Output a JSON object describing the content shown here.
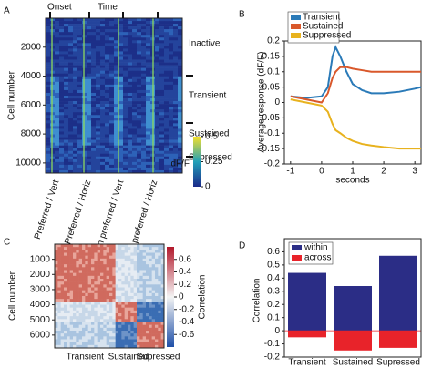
{
  "chart_data": [
    {
      "type": "heatmap",
      "panel": "A",
      "title": "Time",
      "annotation": "Onset",
      "ylabel": "Cell number",
      "ylim": [
        0,
        10700
      ],
      "yticks": [
        2000,
        4000,
        6000,
        8000,
        10000
      ],
      "groups": [
        {
          "name": "Inactive",
          "color": "#111111"
        },
        {
          "name": "Transient",
          "color": "#2a7ab8"
        },
        {
          "name": "Sustained",
          "color": "#d9582b"
        },
        {
          "name": "Supressed",
          "color": "#e8b21e"
        }
      ],
      "conditions": [
        {
          "name": "Preferred / Vert",
          "color": "#5aa845"
        },
        {
          "name": "Preferred / Horiz",
          "color": "#5aa845"
        },
        {
          "name": "Non preferred / Vert",
          "color": "#c0392b"
        },
        {
          "name": "Non preferred / Horiz",
          "color": "#c0392b"
        }
      ],
      "colorbar": {
        "label": "dF/F",
        "clim": [
          0,
          0.5
        ],
        "ticks": [
          0,
          0.25,
          0.5
        ]
      }
    },
    {
      "type": "line",
      "panel": "B",
      "xlabel": "seconds",
      "ylabel": "Average response (dF/F)",
      "x": [
        -1,
        -0.5,
        0,
        0.2,
        0.35,
        0.45,
        0.6,
        0.8,
        1,
        1.3,
        1.6,
        2,
        2.5,
        3,
        3.2
      ],
      "series": [
        {
          "name": "Transient",
          "color": "#2a7ab8",
          "values": [
            0.02,
            0.015,
            0.02,
            0.05,
            0.15,
            0.18,
            0.15,
            0.1,
            0.06,
            0.04,
            0.03,
            0.03,
            0.035,
            0.045,
            0.05
          ]
        },
        {
          "name": "Sustained",
          "color": "#d9582b",
          "values": [
            0.02,
            0.01,
            0.0,
            0.03,
            0.08,
            0.1,
            0.115,
            0.115,
            0.11,
            0.105,
            0.1,
            0.1,
            0.1,
            0.1,
            0.1
          ]
        },
        {
          "name": "Suppressed",
          "color": "#e8b21e",
          "values": [
            0.01,
            0.0,
            -0.01,
            -0.03,
            -0.07,
            -0.09,
            -0.1,
            -0.115,
            -0.125,
            -0.135,
            -0.14,
            -0.145,
            -0.15,
            -0.15,
            -0.15
          ]
        }
      ],
      "xlim": [
        -1.2,
        3.2
      ],
      "ylim": [
        -0.2,
        0.2
      ],
      "xticks": [
        -1,
        0,
        1,
        2,
        3
      ],
      "yticks": [
        -0.2,
        -0.15,
        -0.1,
        -0.05,
        0,
        0.05,
        0.1,
        0.15,
        0.2
      ],
      "legend": "upper left"
    },
    {
      "type": "heatmap",
      "panel": "C",
      "ylabel": "Cell number",
      "ylim": [
        0,
        6850
      ],
      "yticks": [
        1000,
        2000,
        3000,
        4000,
        5000,
        6000
      ],
      "categories": [
        "Transient",
        "Sustained",
        "Supressed"
      ],
      "label_colors": [
        "#2a7ab8",
        "#d9582b",
        "#e8b21e"
      ],
      "colorbar": {
        "label": "Correlation",
        "clim": [
          -0.8,
          0.8
        ],
        "ticks": [
          -0.6,
          -0.4,
          -0.2,
          0,
          0.2,
          0.4,
          0.6
        ]
      }
    },
    {
      "type": "bar",
      "panel": "D",
      "ylabel": "Correlation",
      "categories": [
        "Transient",
        "Sustained",
        "Supressed"
      ],
      "label_colors": [
        "#2a7ab8",
        "#d9582b",
        "#e8b21e"
      ],
      "series": [
        {
          "name": "within",
          "color": "#2b2d86",
          "values": [
            0.44,
            0.34,
            0.57
          ]
        },
        {
          "name": "across",
          "color": "#e8232a",
          "values": [
            -0.05,
            -0.15,
            -0.13
          ]
        }
      ],
      "ylim": [
        -0.2,
        0.7
      ],
      "yticks": [
        -0.2,
        -0.1,
        0,
        0.1,
        0.2,
        0.3,
        0.4,
        0.5,
        0.6
      ],
      "legend": "upper left"
    }
  ]
}
